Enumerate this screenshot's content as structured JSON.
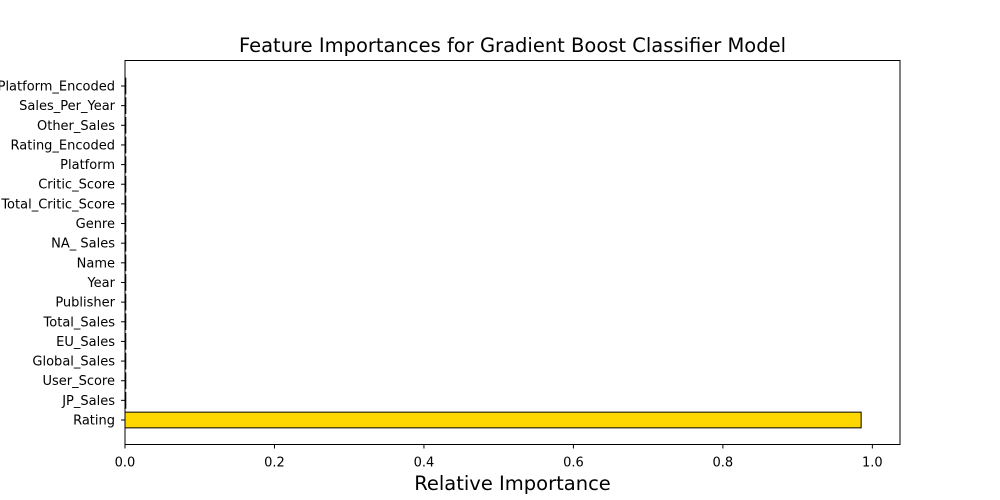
{
  "chart_data": {
    "type": "bar",
    "orientation": "horizontal",
    "title": "Feature Importances for Gradient Boost Classifier Model",
    "xlabel": "Relative Importance",
    "ylabel": "",
    "xlim": [
      0,
      1.037
    ],
    "xticks": [
      0.0,
      0.2,
      0.4,
      0.6,
      0.8,
      1.0
    ],
    "xtick_labels": [
      "0.0",
      "0.2",
      "0.4",
      "0.6",
      "0.8",
      "1.0"
    ],
    "categories": [
      "Rating",
      "JP_Sales",
      "User_Score",
      "Global_Sales",
      "EU_Sales",
      "Total_Sales",
      "Publisher",
      "Year",
      "Name",
      "NA_ Sales",
      "Genre",
      "Total_Critic_Score",
      "Critic_Score",
      "Platform",
      "Rating_Encoded",
      "Other_Sales",
      "Sales_Per_Year",
      "Platform_Encoded"
    ],
    "values": [
      0.985,
      0.001,
      0.001,
      0.001,
      0.001,
      0.001,
      0.001,
      0.001,
      0.001,
      0.001,
      0.001,
      0.001,
      0.001,
      0.001,
      0.001,
      0.001,
      0.001,
      0.001
    ],
    "bar_color": "#FFD700",
    "edge_color": "#000000",
    "grid": false,
    "legend": "none"
  }
}
